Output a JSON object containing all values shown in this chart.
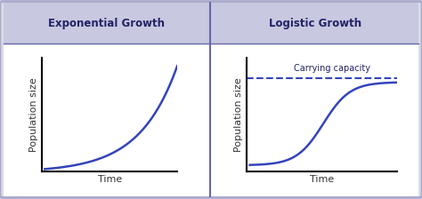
{
  "title_left": "Exponential Growth",
  "title_right": "Logistic Growth",
  "xlabel": "Time",
  "ylabel": "Population size",
  "carrying_capacity_label": "Carrying capacity",
  "outer_bg": "#dcdce8",
  "inner_bg": "#ffffff",
  "header_bg": "#c8c8e0",
  "curve_color": "#3344bb",
  "dashed_color": "#3344bb",
  "title_color": "#222266",
  "label_color": "#333333",
  "divider_color": "#6666aa",
  "border_color": "#aaaacc",
  "figsize": [
    4.74,
    2.24
  ],
  "dpi": 100
}
